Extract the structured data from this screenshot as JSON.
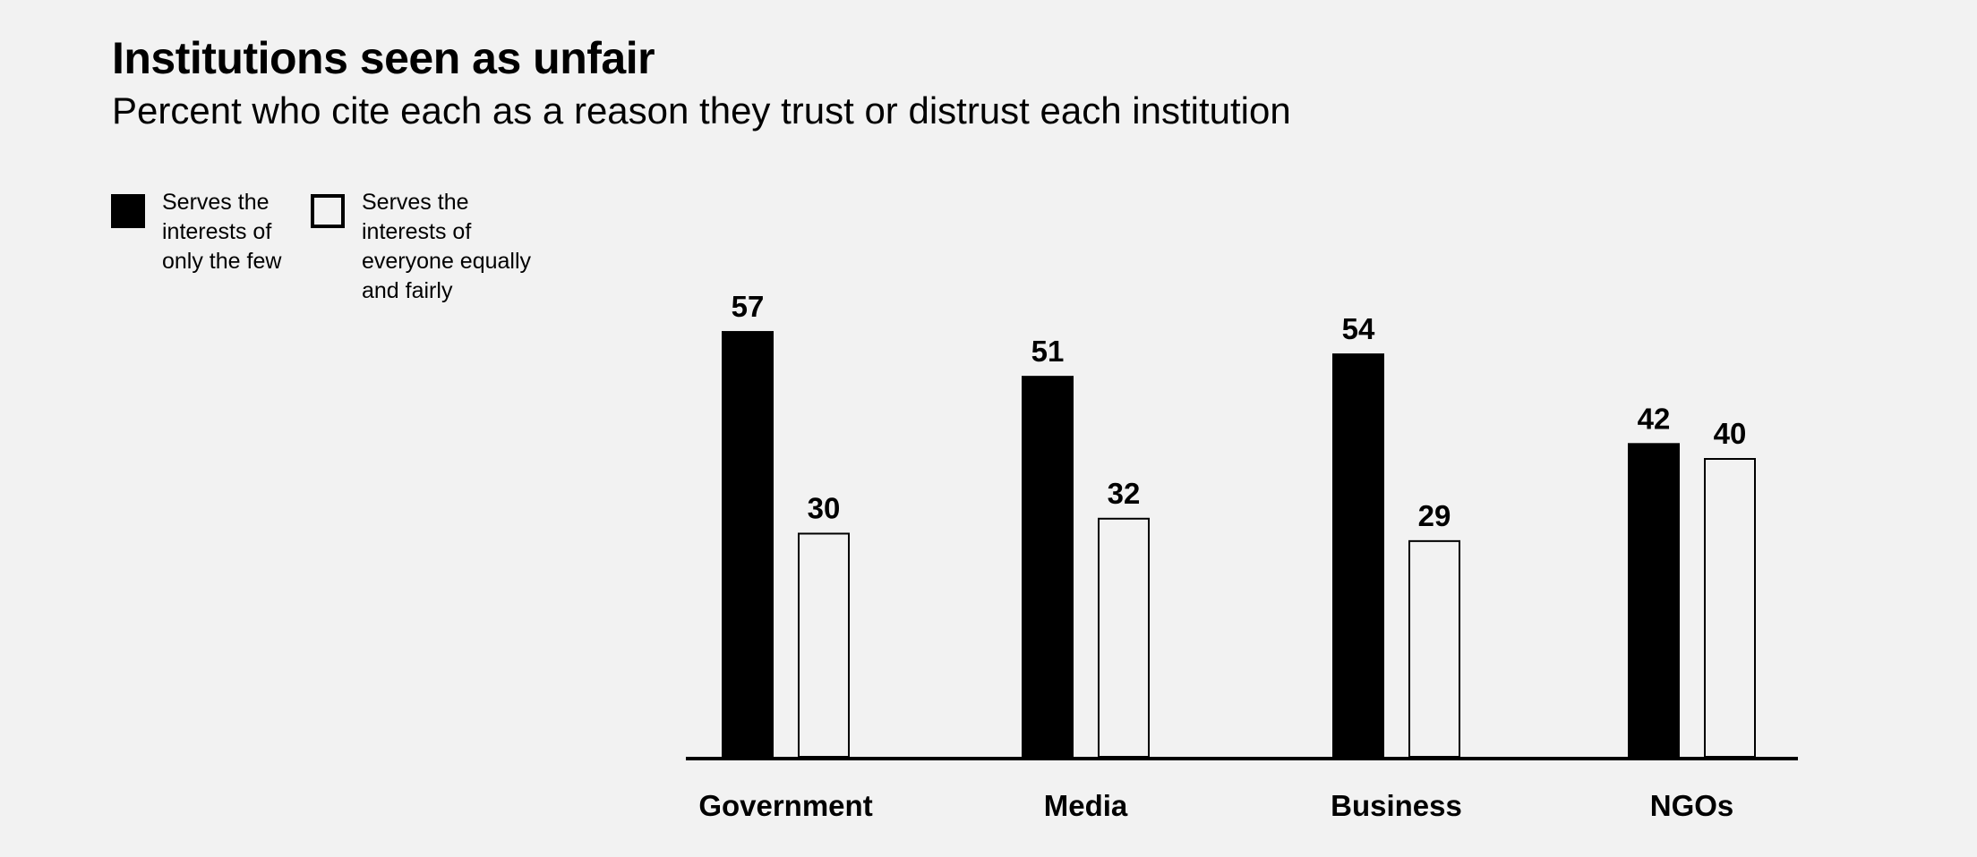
{
  "chart_data": {
    "type": "bar",
    "title": "Institutions seen as unfair",
    "subtitle": "Percent who cite each as a reason they trust or distrust each institution",
    "categories": [
      "Government",
      "Media",
      "Business",
      "NGOs"
    ],
    "series": [
      {
        "name": "Serves the interests of only the few",
        "legend_lines": "Serves the\ninterests of\nonly the few",
        "style": "filled",
        "color": "#000000",
        "values": [
          57,
          51,
          54,
          42
        ]
      },
      {
        "name": "Serves the interests of everyone equally and fairly",
        "legend_lines": "Serves the\ninterests of\neveryone equally\nand fairly",
        "style": "outline",
        "color": "#000000",
        "values": [
          30,
          32,
          29,
          40
        ]
      }
    ],
    "ylim": [
      0,
      60
    ],
    "grid": false,
    "legend_position": "top-left",
    "xlabel": "",
    "ylabel": ""
  }
}
